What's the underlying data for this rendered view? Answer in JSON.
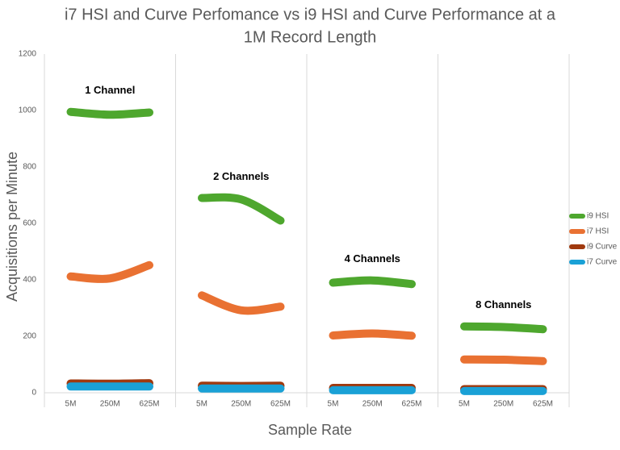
{
  "chart_data": {
    "type": "line",
    "title": "i7 HSI and Curve Perfomance vs i9 HSI and Curve Performance at a",
    "subtitle": "1M Record Length",
    "y_label": "Acquisitions per Minute",
    "x_label": "Sample Rate",
    "categories": [
      "5M",
      "250M",
      "625M",
      "5M",
      "250M",
      "625M",
      "5M",
      "250M",
      "625M",
      "5M",
      "250M",
      "625M"
    ],
    "group_labels": [
      "1 Channel",
      "2 Channels",
      "4 Channels",
      "8 Channels"
    ],
    "series": [
      {
        "name": "i9 HSI",
        "color": "#4ea72e",
        "values": [
          995,
          985,
          993,
          690,
          685,
          610,
          390,
          398,
          385,
          235,
          233,
          225
        ]
      },
      {
        "name": "i7 HSI",
        "color": "#e97132",
        "values": [
          412,
          405,
          452,
          345,
          292,
          305,
          203,
          210,
          202,
          118,
          117,
          112
        ]
      },
      {
        "name": "i9 Curve",
        "color": "#a0390e",
        "values": [
          33,
          32,
          34,
          25,
          24,
          25,
          17,
          17,
          17,
          13,
          13,
          13
        ]
      },
      {
        "name": "i7 Curve",
        "color": "#1aa1d6",
        "values": [
          22,
          22,
          22,
          15,
          15,
          15,
          9,
          9,
          9,
          6,
          6,
          6
        ]
      }
    ],
    "ylim": [
      0,
      1200
    ],
    "yticks": [
      0,
      200,
      400,
      600,
      800,
      1000,
      1200
    ],
    "legend": "right"
  }
}
